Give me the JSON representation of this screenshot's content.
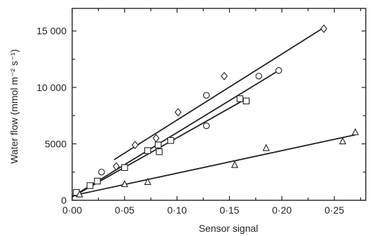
{
  "chart_data": {
    "type": "scatter",
    "xlabel": "Sensor signal",
    "ylabel": "Water flow (mmol m⁻² s⁻¹)",
    "xlim": [
      0,
      0.28
    ],
    "ylim": [
      0,
      17000
    ],
    "x_ticks": [
      {
        "value": 0.0,
        "label": "0·00"
      },
      {
        "value": 0.05,
        "label": "0·05"
      },
      {
        "value": 0.1,
        "label": "0·10"
      },
      {
        "value": 0.15,
        "label": "0·15"
      },
      {
        "value": 0.2,
        "label": "0·20"
      },
      {
        "value": 0.25,
        "label": "0·25"
      }
    ],
    "y_ticks": [
      {
        "value": 0,
        "label": "0"
      },
      {
        "value": 5000,
        "label": "5000"
      },
      {
        "value": 10000,
        "label": "10 000"
      },
      {
        "value": 15000,
        "label": "15 000"
      }
    ],
    "grid": false,
    "series": [
      {
        "marker": "diamond",
        "points": [
          [
            0.042,
            3000
          ],
          [
            0.06,
            4900
          ],
          [
            0.08,
            5500
          ],
          [
            0.101,
            7800
          ],
          [
            0.145,
            11000
          ],
          [
            0.24,
            15200
          ]
        ],
        "fit": {
          "x": [
            0.04,
            0.24
          ],
          "y": [
            3600,
            15300
          ]
        }
      },
      {
        "marker": "circle",
        "points": [
          [
            0.005,
            600
          ],
          [
            0.028,
            2500
          ],
          [
            0.128,
            6600
          ],
          [
            0.128,
            9300
          ],
          [
            0.178,
            11000
          ],
          [
            0.197,
            11500
          ]
        ],
        "fit": {
          "x": [
            0.005,
            0.197
          ],
          "y": [
            600,
            11500
          ]
        }
      },
      {
        "marker": "square",
        "points": [
          [
            0.004,
            700
          ],
          [
            0.017,
            1300
          ],
          [
            0.024,
            1700
          ],
          [
            0.05,
            2900
          ],
          [
            0.072,
            4400
          ],
          [
            0.083,
            4300
          ],
          [
            0.082,
            4900
          ],
          [
            0.094,
            5300
          ],
          [
            0.16,
            9000
          ],
          [
            0.166,
            8800
          ]
        ],
        "fit": {
          "x": [
            0.0,
            0.166
          ],
          "y": [
            300,
            9000
          ]
        }
      },
      {
        "marker": "triangle",
        "points": [
          [
            0.007,
            500
          ],
          [
            0.05,
            1400
          ],
          [
            0.072,
            1600
          ],
          [
            0.155,
            3100
          ],
          [
            0.185,
            4600
          ],
          [
            0.258,
            5200
          ],
          [
            0.27,
            6000
          ]
        ],
        "fit": {
          "x": [
            0.0,
            0.27
          ],
          "y": [
            400,
            5800
          ]
        }
      }
    ]
  }
}
